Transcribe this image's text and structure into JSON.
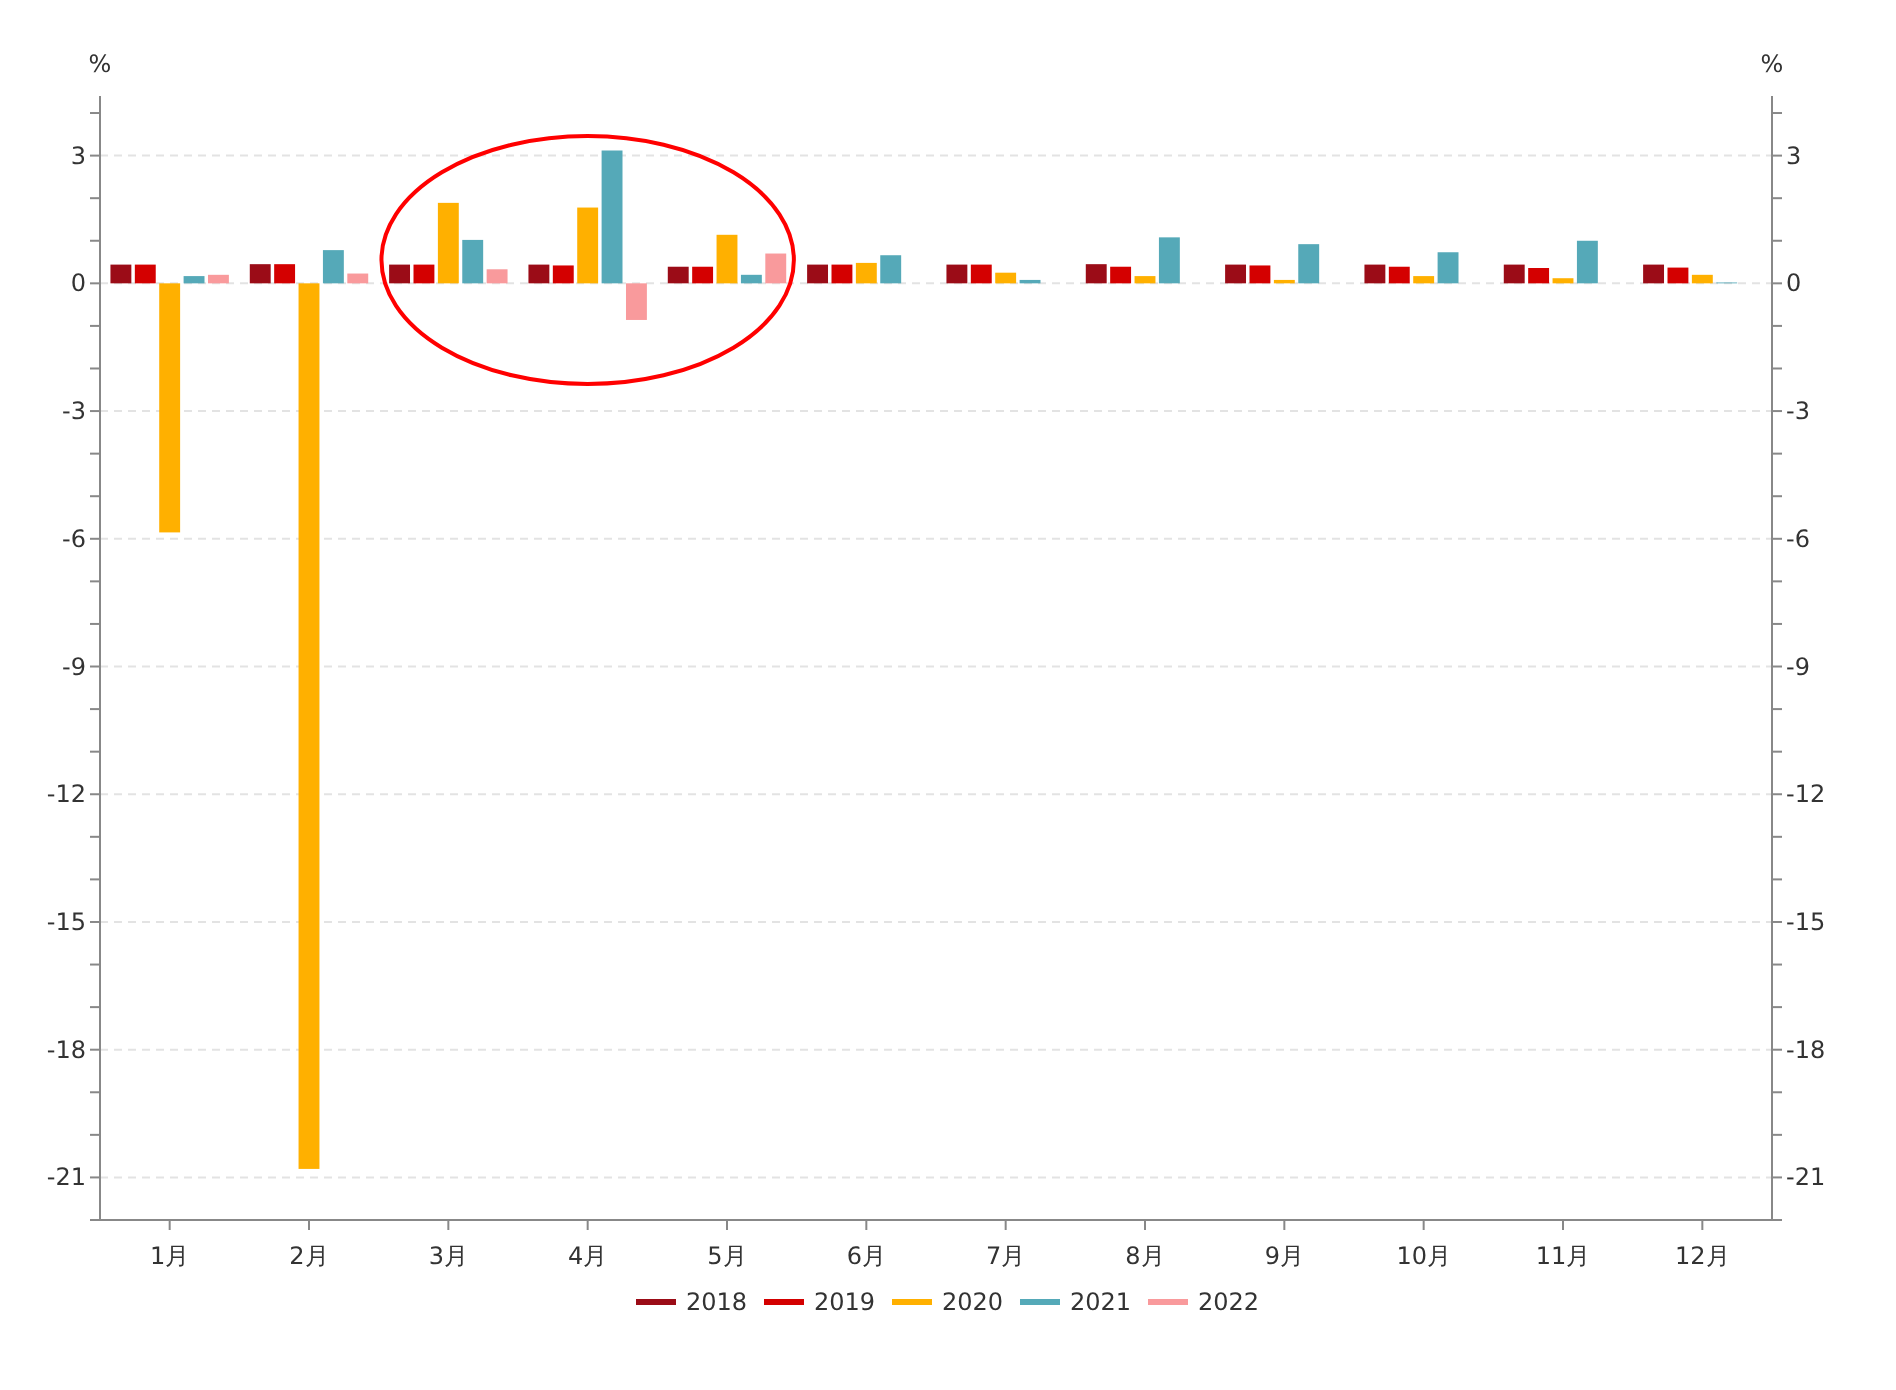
{
  "chart_data": {
    "type": "bar",
    "ylabel": "%",
    "y2label": "%",
    "categories": [
      "1月",
      "2月",
      "3月",
      "4月",
      "5月",
      "6月",
      "7月",
      "8月",
      "9月",
      "10月",
      "11月",
      "12月"
    ],
    "series": [
      {
        "name": "2018",
        "color": "#9b0c17",
        "values": [
          0.44,
          0.45,
          0.44,
          0.44,
          0.39,
          0.44,
          0.44,
          0.45,
          0.44,
          0.44,
          0.44,
          0.44
        ]
      },
      {
        "name": "2019",
        "color": "#d40000",
        "values": [
          0.44,
          0.45,
          0.44,
          0.42,
          0.39,
          0.44,
          0.44,
          0.39,
          0.42,
          0.39,
          0.36,
          0.37
        ]
      },
      {
        "name": "2020",
        "color": "#ffb000",
        "values": [
          -5.85,
          -20.8,
          1.89,
          1.78,
          1.14,
          0.48,
          0.25,
          0.17,
          0.08,
          0.17,
          0.12,
          0.2
        ]
      },
      {
        "name": "2021",
        "color": "#55a9b8",
        "values": [
          0.17,
          0.78,
          1.02,
          3.12,
          0.2,
          0.66,
          0.08,
          1.08,
          0.92,
          0.73,
          1.0,
          0.02
        ]
      },
      {
        "name": "2022",
        "color": "#f99a9c",
        "values": [
          0.2,
          0.23,
          0.33,
          -0.86,
          0.7,
          null,
          null,
          null,
          null,
          null,
          null,
          null
        ]
      }
    ],
    "ylim": [
      -22,
      4.4
    ],
    "yticks": [
      {
        "value": -22,
        "label": null
      },
      -21,
      {
        "value": -20,
        "label": null
      },
      {
        "value": -19,
        "label": null
      },
      -18,
      {
        "value": -17,
        "label": null
      },
      {
        "value": -16,
        "label": null
      },
      -15,
      {
        "value": -14,
        "label": null
      },
      {
        "value": -13,
        "label": null
      },
      -12,
      {
        "value": -11,
        "label": null
      },
      {
        "value": -10,
        "label": null
      },
      -9,
      {
        "value": -8,
        "label": null
      },
      {
        "value": -7,
        "label": null
      },
      -6,
      {
        "value": -5,
        "label": null
      },
      {
        "value": -4,
        "label": null
      },
      -3,
      {
        "value": -2,
        "label": null
      },
      {
        "value": -1,
        "label": null
      },
      0,
      {
        "value": 1,
        "label": null
      },
      {
        "value": 2,
        "label": null
      },
      3,
      {
        "value": 4,
        "label": null
      }
    ],
    "y2lim": [
      -22,
      4.4
    ],
    "y2ticks": [
      {
        "value": -22,
        "label": null
      },
      -21,
      {
        "value": -20,
        "label": null
      },
      {
        "value": -19,
        "label": null
      },
      -18,
      {
        "value": -17,
        "label": null
      },
      {
        "value": -16,
        "label": null
      },
      -15,
      {
        "value": -14,
        "label": null
      },
      {
        "value": -13,
        "label": null
      },
      -12,
      {
        "value": -11,
        "label": null
      },
      {
        "value": -10,
        "label": null
      },
      -9,
      {
        "value": -8,
        "label": null
      },
      {
        "value": -7,
        "label": null
      },
      -6,
      {
        "value": -5,
        "label": null
      },
      {
        "value": -4,
        "label": null
      },
      -3,
      {
        "value": -2,
        "label": null
      },
      {
        "value": -1,
        "label": null
      },
      0,
      {
        "value": 1,
        "label": null
      },
      {
        "value": 2,
        "label": null
      },
      3,
      {
        "value": 4,
        "label": null
      }
    ],
    "grid": "y",
    "legend": "bottom"
  }
}
